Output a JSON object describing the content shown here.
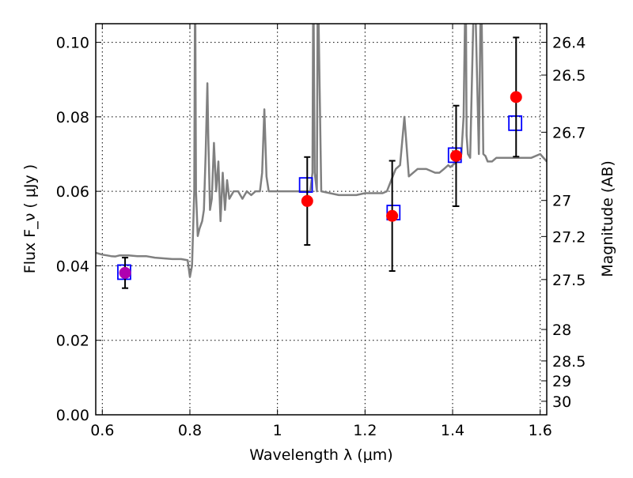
{
  "chart_data": {
    "type": "scatter",
    "title": "",
    "xlabel": "Wavelength  λ (μm)",
    "ylabel": "Flux  F_ν  ( μJy )",
    "y2label": "Magnitude (AB)",
    "xlim": [
      0.585,
      1.615
    ],
    "ylim": [
      0.0,
      0.105
    ],
    "grid": true,
    "x_ticks": [
      0.6,
      0.8,
      1.0,
      1.2,
      1.4,
      1.6
    ],
    "x_tick_labels": [
      "0.6",
      "0.8",
      "1",
      "1.2",
      "1.4",
      "1.6"
    ],
    "y_ticks": [
      0.0,
      0.02,
      0.04,
      0.06,
      0.08,
      0.1
    ],
    "y_tick_labels": [
      "0.00",
      "0.02",
      "0.04",
      "0.06",
      "0.08",
      "0.10"
    ],
    "y2_ticks": [
      26.4,
      26.5,
      26.7,
      27.0,
      27.2,
      27.5,
      28.0,
      28.5,
      29.0,
      30.0
    ],
    "y2_tick_labels": [
      "26.4",
      "26.5",
      "26.7",
      "27",
      "27.2",
      "27.5",
      "28",
      "28.5",
      "29",
      "30"
    ],
    "series": [
      {
        "kind": "line",
        "color": "#808080",
        "x": [
          0.585,
          0.6,
          0.61,
          0.62,
          0.63,
          0.64,
          0.66,
          0.68,
          0.7,
          0.72,
          0.74,
          0.76,
          0.78,
          0.795,
          0.8,
          0.805,
          0.81,
          0.812,
          0.814,
          0.818,
          0.822,
          0.828,
          0.832,
          0.836,
          0.84,
          0.842,
          0.846,
          0.85,
          0.855,
          0.86,
          0.865,
          0.87,
          0.875,
          0.88,
          0.885,
          0.89,
          0.9,
          0.91,
          0.92,
          0.93,
          0.94,
          0.95,
          0.96,
          0.965,
          0.97,
          0.975,
          0.98,
          0.99,
          1.0,
          1.02,
          1.04,
          1.055,
          1.06,
          1.065,
          1.07,
          1.075,
          1.08,
          1.082,
          1.085,
          1.09,
          1.092,
          1.1,
          1.12,
          1.14,
          1.16,
          1.18,
          1.2,
          1.22,
          1.24,
          1.25,
          1.26,
          1.27,
          1.28,
          1.29,
          1.3,
          1.32,
          1.34,
          1.36,
          1.37,
          1.38,
          1.39,
          1.395,
          1.4,
          1.41,
          1.42,
          1.425,
          1.43,
          1.432,
          1.435,
          1.44,
          1.45,
          1.46,
          1.465,
          1.47,
          1.475,
          1.48,
          1.49,
          1.5,
          1.52,
          1.54,
          1.56,
          1.58,
          1.6,
          1.615
        ],
        "y": [
          0.0435,
          0.043,
          0.0428,
          0.0426,
          0.0425,
          0.0428,
          0.0428,
          0.0426,
          0.0426,
          0.0422,
          0.042,
          0.0418,
          0.0418,
          0.0415,
          0.037,
          0.04,
          0.06,
          0.12,
          0.06,
          0.048,
          0.05,
          0.052,
          0.055,
          0.07,
          0.089,
          0.075,
          0.055,
          0.058,
          0.073,
          0.06,
          0.068,
          0.052,
          0.065,
          0.055,
          0.063,
          0.058,
          0.06,
          0.06,
          0.058,
          0.06,
          0.059,
          0.06,
          0.06,
          0.065,
          0.082,
          0.064,
          0.06,
          0.06,
          0.06,
          0.06,
          0.06,
          0.06,
          0.06,
          0.06,
          0.06,
          0.06,
          0.065,
          0.12,
          0.065,
          0.06,
          0.12,
          0.06,
          0.0595,
          0.059,
          0.059,
          0.059,
          0.0595,
          0.0595,
          0.0595,
          0.06,
          0.063,
          0.066,
          0.067,
          0.08,
          0.064,
          0.066,
          0.066,
          0.065,
          0.065,
          0.066,
          0.067,
          0.0665,
          0.067,
          0.068,
          0.07,
          0.08,
          0.12,
          0.075,
          0.07,
          0.069,
          0.12,
          0.07,
          0.12,
          0.07,
          0.0695,
          0.068,
          0.068,
          0.069,
          0.069,
          0.069,
          0.069,
          0.069,
          0.07,
          0.068
        ]
      },
      {
        "kind": "points",
        "marker": "circle",
        "color": "#ff0000",
        "x": [
          0.652,
          1.068,
          1.262,
          1.408,
          1.545
        ],
        "y": [
          0.0381,
          0.0574,
          0.0534,
          0.0695,
          0.0853
        ],
        "yerr": [
          0.0041,
          0.0118,
          0.0148,
          0.0135,
          0.016
        ]
      },
      {
        "kind": "points",
        "marker": "open-square",
        "color": "#0000ff",
        "x": [
          0.65,
          1.065,
          1.265,
          1.405,
          1.543
        ],
        "y": [
          0.0383,
          0.0617,
          0.0543,
          0.0697,
          0.0783
        ]
      }
    ]
  }
}
